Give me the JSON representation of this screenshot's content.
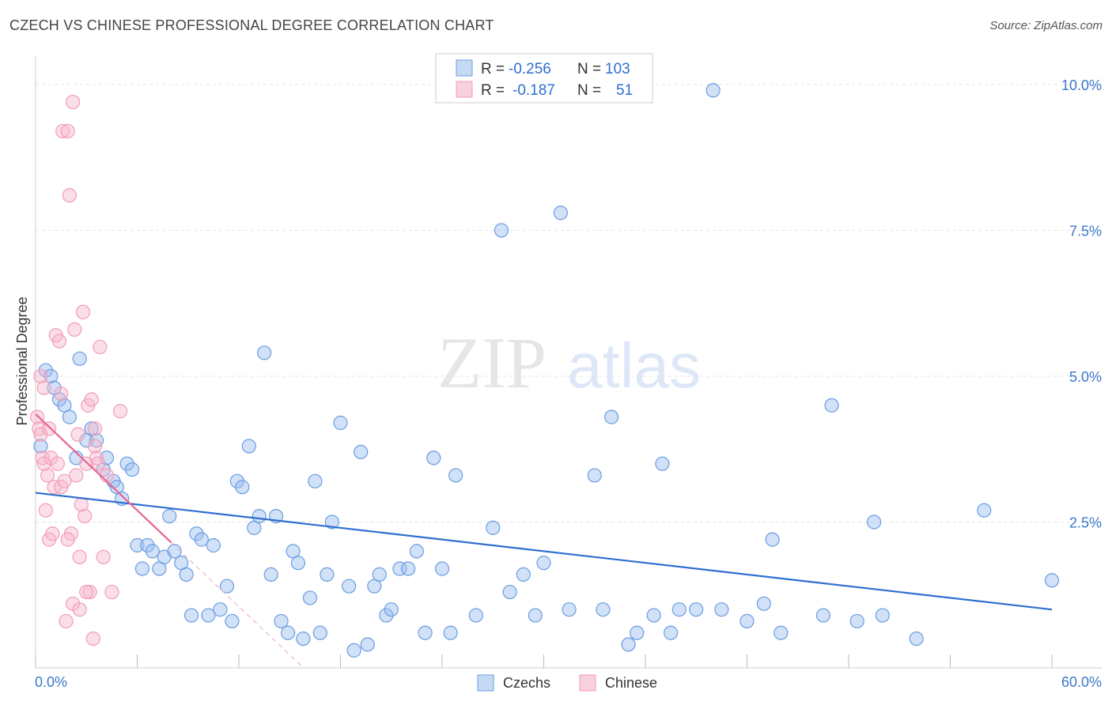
{
  "chart_data": {
    "type": "scatter",
    "title": "CZECH VS CHINESE PROFESSIONAL DEGREE CORRELATION CHART",
    "source": "Source: ZipAtlas.com",
    "ylabel": "Professional Degree",
    "xlabel": "",
    "xlim": [
      0,
      60
    ],
    "ylim": [
      0,
      10.5
    ],
    "x_tick_labels": [
      "0.0%",
      "60.0%"
    ],
    "y_ticks": [
      2.5,
      5.0,
      7.5,
      10.0
    ],
    "y_tick_labels": [
      "2.5%",
      "5.0%",
      "7.5%",
      "10.0%"
    ],
    "watermark": "ZIPatlas",
    "colors": {
      "czechs": "#6b9de0",
      "chinese": "#f29cb7",
      "czech_line": "#2e6fd0",
      "chinese_line": "#e8658f"
    },
    "legend": {
      "rows": [
        {
          "r_label": "R =",
          "r_value": "-0.256",
          "n_label": "N =",
          "n_value": "103"
        },
        {
          "r_label": "R =",
          "r_value": "-0.187",
          "n_label": "N =",
          "n_value": "51"
        }
      ],
      "bottom": [
        "Czechs",
        "Chinese"
      ]
    },
    "series": [
      {
        "name": "Czechs",
        "trend": [
          [
            0,
            3.0
          ],
          [
            60,
            1.0
          ]
        ],
        "points": [
          [
            0.3,
            3.8
          ],
          [
            0.6,
            5.1
          ],
          [
            0.9,
            5.0
          ],
          [
            1.1,
            4.8
          ],
          [
            1.4,
            4.6
          ],
          [
            1.7,
            4.5
          ],
          [
            2.0,
            4.3
          ],
          [
            2.4,
            3.6
          ],
          [
            2.6,
            5.3
          ],
          [
            3.0,
            3.9
          ],
          [
            3.3,
            4.1
          ],
          [
            3.6,
            3.9
          ],
          [
            4.0,
            3.4
          ],
          [
            4.2,
            3.6
          ],
          [
            4.6,
            3.2
          ],
          [
            4.8,
            3.1
          ],
          [
            5.1,
            2.9
          ],
          [
            5.4,
            3.5
          ],
          [
            5.7,
            3.4
          ],
          [
            6.0,
            2.1
          ],
          [
            6.3,
            1.7
          ],
          [
            6.6,
            2.1
          ],
          [
            6.9,
            2.0
          ],
          [
            7.3,
            1.7
          ],
          [
            7.6,
            1.9
          ],
          [
            7.9,
            2.6
          ],
          [
            8.2,
            2.0
          ],
          [
            8.6,
            1.8
          ],
          [
            8.9,
            1.6
          ],
          [
            9.2,
            0.9
          ],
          [
            9.5,
            2.3
          ],
          [
            9.8,
            2.2
          ],
          [
            10.2,
            0.9
          ],
          [
            10.5,
            2.1
          ],
          [
            10.9,
            1.0
          ],
          [
            11.3,
            1.4
          ],
          [
            11.6,
            0.8
          ],
          [
            11.9,
            3.2
          ],
          [
            12.2,
            3.1
          ],
          [
            12.6,
            3.8
          ],
          [
            12.9,
            2.4
          ],
          [
            13.2,
            2.6
          ],
          [
            13.5,
            5.4
          ],
          [
            13.9,
            1.6
          ],
          [
            14.2,
            2.6
          ],
          [
            14.5,
            0.8
          ],
          [
            14.9,
            0.6
          ],
          [
            15.2,
            2.0
          ],
          [
            15.5,
            1.8
          ],
          [
            15.8,
            0.5
          ],
          [
            16.2,
            1.2
          ],
          [
            16.5,
            3.2
          ],
          [
            16.8,
            0.6
          ],
          [
            17.2,
            1.6
          ],
          [
            17.5,
            2.5
          ],
          [
            18.0,
            4.2
          ],
          [
            18.5,
            1.4
          ],
          [
            18.8,
            0.3
          ],
          [
            19.2,
            3.7
          ],
          [
            19.6,
            0.4
          ],
          [
            20.0,
            1.4
          ],
          [
            20.3,
            1.6
          ],
          [
            20.7,
            0.9
          ],
          [
            21.0,
            1.0
          ],
          [
            21.5,
            1.7
          ],
          [
            22.0,
            1.7
          ],
          [
            22.5,
            2.0
          ],
          [
            23.0,
            0.6
          ],
          [
            23.5,
            3.6
          ],
          [
            24.0,
            1.7
          ],
          [
            24.5,
            0.6
          ],
          [
            24.8,
            3.3
          ],
          [
            26.0,
            0.9
          ],
          [
            27.0,
            2.4
          ],
          [
            27.5,
            7.5
          ],
          [
            28.0,
            1.3
          ],
          [
            28.8,
            1.6
          ],
          [
            29.5,
            0.9
          ],
          [
            30.0,
            1.8
          ],
          [
            31.0,
            7.8
          ],
          [
            31.5,
            1.0
          ],
          [
            33.0,
            3.3
          ],
          [
            33.5,
            1.0
          ],
          [
            34.0,
            4.3
          ],
          [
            35.0,
            0.4
          ],
          [
            35.5,
            0.6
          ],
          [
            36.5,
            0.9
          ],
          [
            37.0,
            3.5
          ],
          [
            37.5,
            0.6
          ],
          [
            38.0,
            1.0
          ],
          [
            39.0,
            1.0
          ],
          [
            40.0,
            9.9
          ],
          [
            40.5,
            1.0
          ],
          [
            42.0,
            0.8
          ],
          [
            43.0,
            1.1
          ],
          [
            43.5,
            2.2
          ],
          [
            44.0,
            0.6
          ],
          [
            46.5,
            0.9
          ],
          [
            47.0,
            4.5
          ],
          [
            48.5,
            0.8
          ],
          [
            49.5,
            2.5
          ],
          [
            50.0,
            0.9
          ],
          [
            52.0,
            0.5
          ],
          [
            56.0,
            2.7
          ],
          [
            60.0,
            1.5
          ]
        ]
      },
      {
        "name": "Chinese",
        "trend": [
          [
            0,
            4.35
          ],
          [
            8,
            2.15
          ]
        ],
        "points": [
          [
            0.1,
            4.3
          ],
          [
            0.2,
            4.1
          ],
          [
            0.3,
            5.0
          ],
          [
            0.4,
            3.6
          ],
          [
            0.5,
            4.8
          ],
          [
            0.6,
            2.7
          ],
          [
            0.7,
            3.3
          ],
          [
            0.8,
            2.2
          ],
          [
            0.9,
            3.6
          ],
          [
            1.0,
            2.3
          ],
          [
            1.1,
            3.1
          ],
          [
            1.2,
            5.7
          ],
          [
            1.3,
            3.5
          ],
          [
            1.4,
            5.6
          ],
          [
            1.5,
            4.7
          ],
          [
            1.6,
            9.2
          ],
          [
            1.7,
            3.2
          ],
          [
            1.8,
            0.8
          ],
          [
            1.9,
            9.2
          ],
          [
            2.0,
            8.1
          ],
          [
            2.1,
            2.3
          ],
          [
            2.2,
            1.1
          ],
          [
            2.3,
            5.8
          ],
          [
            2.4,
            3.3
          ],
          [
            2.5,
            4.0
          ],
          [
            2.6,
            1.9
          ],
          [
            2.7,
            2.8
          ],
          [
            2.8,
            6.1
          ],
          [
            2.9,
            2.6
          ],
          [
            3.0,
            3.5
          ],
          [
            3.1,
            4.5
          ],
          [
            3.2,
            1.3
          ],
          [
            3.3,
            4.6
          ],
          [
            3.4,
            0.5
          ],
          [
            3.5,
            3.8
          ],
          [
            3.6,
            3.6
          ],
          [
            3.7,
            3.5
          ],
          [
            3.8,
            5.5
          ],
          [
            4.0,
            1.9
          ],
          [
            4.2,
            3.3
          ],
          [
            4.5,
            1.3
          ],
          [
            5.0,
            4.4
          ],
          [
            0.3,
            4.0
          ],
          [
            0.5,
            3.5
          ],
          [
            0.8,
            4.1
          ],
          [
            1.5,
            3.1
          ],
          [
            1.9,
            2.2
          ],
          [
            2.2,
            9.7
          ],
          [
            2.6,
            1.0
          ],
          [
            3.0,
            1.3
          ],
          [
            3.5,
            4.1
          ]
        ]
      }
    ]
  }
}
